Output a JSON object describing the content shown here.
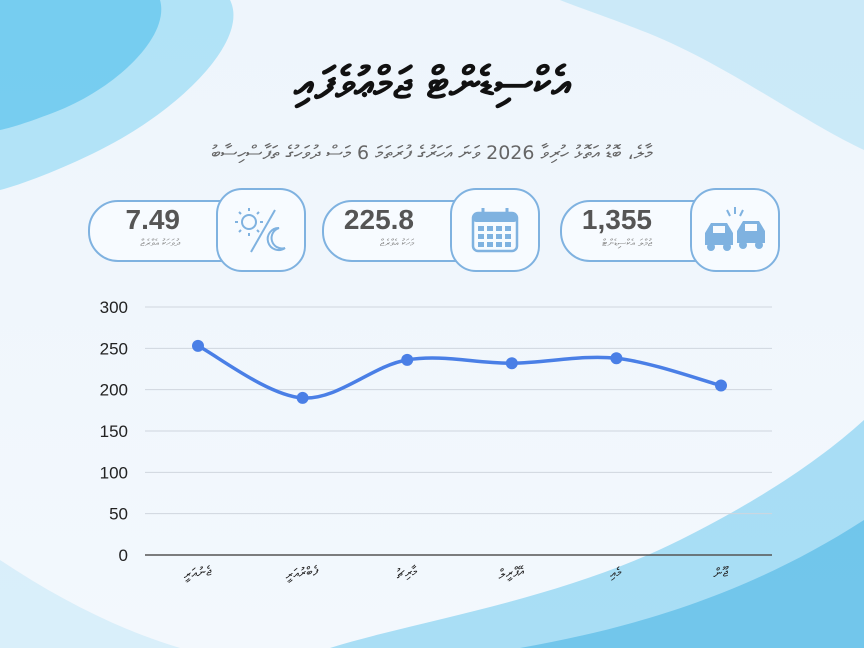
{
  "title": "އެކްސިޑެންޓް ޖަމްޢުވެފައި",
  "subtitle": "މާލެ، ބޮޑު އަތޮޅު ހުރިވާ 2026 ވަނަ އަހަރުގެ ފުރަތަމަ 6 މަސް ދުވަހުގެ ތަފާސްހިސާބު",
  "cards": [
    {
      "value": "7.49",
      "label": "ދުވަހަކު އެވްރެޖް",
      "icon": "day-night-icon"
    },
    {
      "value": "225.8",
      "label": "މަހަކު އެވްރެޖް",
      "icon": "calendar-icon"
    },
    {
      "value": "1,355",
      "label": "ޖުމްލަ އެކްސިޑެންޓް",
      "icon": "car-crash-icon"
    }
  ],
  "colors": {
    "line": "#4a7fe6",
    "card_border": "#7fb2e0",
    "wave": "#6cc8ee"
  },
  "chart_data": {
    "type": "line",
    "categories": [
      "ޖެނުއަރީ",
      "ފެބްރުއަރީ",
      "މާރިޗު",
      "އޭޕްރީލް",
      "މެއި",
      "ޖޫން"
    ],
    "series": [
      {
        "values": [
          253,
          190,
          236,
          232,
          238,
          205
        ]
      }
    ],
    "yticks": [
      0,
      50,
      100,
      150,
      200,
      250,
      300
    ],
    "ylim": [
      0,
      300
    ],
    "grid": true,
    "smooth": true
  }
}
